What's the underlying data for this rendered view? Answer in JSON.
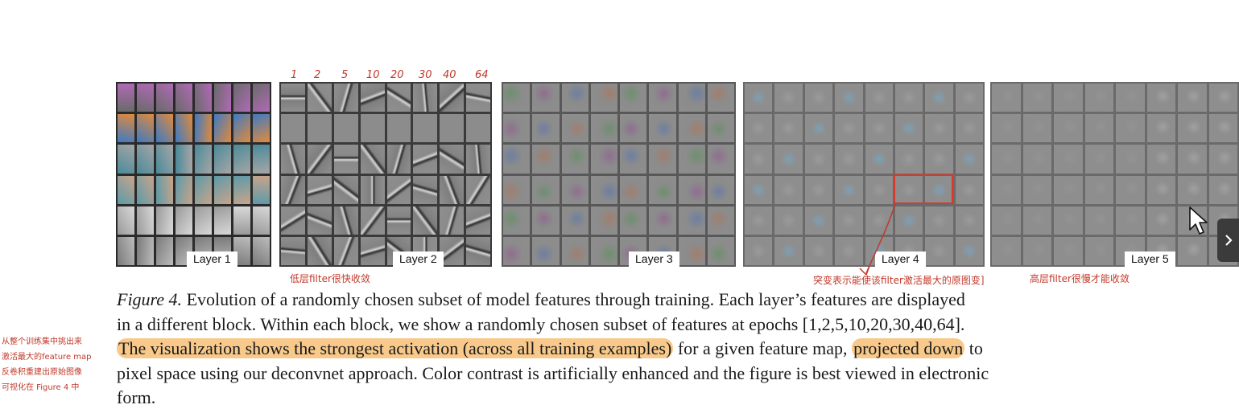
{
  "figure": {
    "layers": [
      "Layer 1",
      "Layer 2",
      "Layer 3",
      "Layer 4",
      "Layer 5"
    ],
    "epoch_marks": [
      "1",
      "2",
      "5",
      "10",
      "20",
      "30",
      "40",
      "64"
    ]
  },
  "annotations": {
    "layer2_note": "低层filter很快收敛",
    "layer4_note": "突变表示能使该filter激活最大的原图变]",
    "layer5_note": "高层filter很慢才能收敛",
    "left_note_lines": [
      "从整个训练集中挑出来",
      "激活最大的feature map",
      "反卷积重建出原始图像",
      "可视化在 Figure 4 中"
    ]
  },
  "caption": {
    "figure_label": "Figure 4.",
    "line1_rest": " Evolution of a randomly chosen subset of model features through training. Each layer’s features are displayed",
    "line2": "in a different block. Within each block, we show a randomly chosen subset of features at epochs [1,2,5,10,20,30,40,64].",
    "line3_highlight1": "The visualization shows the strongest activation (across all training examples)",
    "line3_mid": " for a given feature map, ",
    "line3_highlight2": "projected down",
    "line3_end": " to",
    "line4": "pixel space using our deconvnet approach. Color contrast is artificially enhanced and the figure is best viewed in electronic",
    "line5": "form."
  },
  "colors": {
    "annotation": "#c0392b",
    "highlight": "#f8c98a",
    "box": "#d9392b"
  },
  "icons": {
    "next": "chevron-right-icon",
    "cursor": "mouse-pointer-icon"
  }
}
